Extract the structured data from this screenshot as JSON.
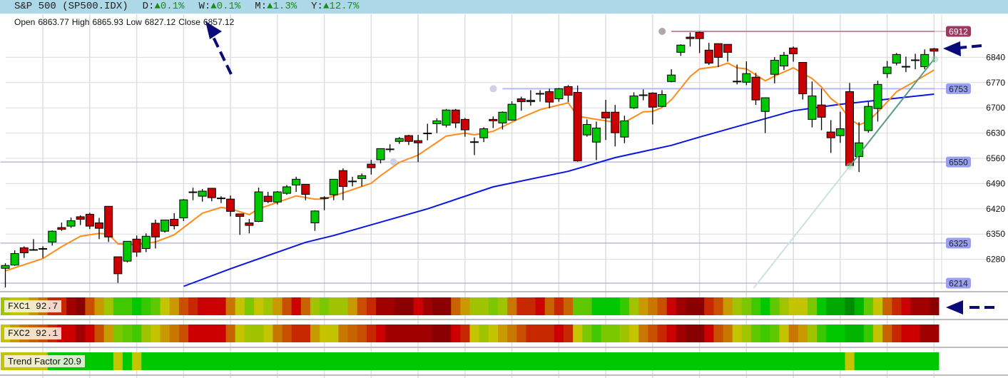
{
  "header": {
    "symbol": "S&P 500 (SP500.IDX)",
    "changes": [
      {
        "label": "D:",
        "arrow": "▲",
        "value": "0.1%"
      },
      {
        "label": "W:",
        "arrow": "▲",
        "value": "0.1%"
      },
      {
        "label": "M:",
        "arrow": "▲",
        "value": "1.3%"
      },
      {
        "label": "Y:",
        "arrow": "▲",
        "value": "12.7%"
      }
    ]
  },
  "ohlc_readout": {
    "open_label": "Open",
    "open": "6863.77",
    "high_label": "High",
    "high": "6865.93",
    "low_label": "Low",
    "low": "6827.12",
    "close_label": "Close",
    "close": "6857.12"
  },
  "colors": {
    "up": "#00c800",
    "down": "#cc0000",
    "fast_ma": "#ff8c1a",
    "slow_ma": "#0a14e6",
    "trendline": "#5a9a88",
    "resistance": "#9c3a5e",
    "level": "#9aa0f0",
    "annotation_arrow": "#0a0a78"
  },
  "chart_data": {
    "type": "candlestick",
    "ylim": [
      6214,
      6912
    ],
    "grid": true,
    "y_ticks": [
      "6280",
      "6350",
      "6420",
      "6490",
      "6560",
      "6630",
      "6700",
      "6770",
      "6840"
    ],
    "candles_ohlc": [
      [
        6255,
        6269,
        6202,
        6263
      ],
      [
        6264,
        6305,
        6262,
        6296
      ],
      [
        6312,
        6316,
        6284,
        6298
      ],
      [
        6306,
        6336,
        6304,
        6305
      ],
      [
        6309,
        6316,
        6284,
        6310
      ],
      [
        6328,
        6360,
        6318,
        6358
      ],
      [
        6368,
        6382,
        6359,
        6363
      ],
      [
        6372,
        6396,
        6367,
        6387
      ],
      [
        6398,
        6402,
        6375,
        6391
      ],
      [
        6405,
        6409,
        6364,
        6372
      ],
      [
        6381,
        6395,
        6336,
        6366
      ],
      [
        6427,
        6427,
        6328,
        6342
      ],
      [
        6287,
        6287,
        6215,
        6240
      ],
      [
        6275,
        6330,
        6271,
        6330
      ],
      [
        6336,
        6346,
        6287,
        6300
      ],
      [
        6310,
        6352,
        6300,
        6344
      ],
      [
        6380,
        6390,
        6310,
        6342
      ],
      [
        6358,
        6389,
        6354,
        6389
      ],
      [
        6391,
        6408,
        6363,
        6373
      ],
      [
        6395,
        6447,
        6386,
        6445
      ],
      [
        6466,
        6479,
        6444,
        6466
      ],
      [
        6455,
        6475,
        6440,
        6469
      ],
      [
        6477,
        6477,
        6441,
        6451
      ],
      [
        6449,
        6455,
        6436,
        6448
      ],
      [
        6447,
        6457,
        6399,
        6413
      ],
      [
        6406,
        6406,
        6348,
        6399
      ],
      [
        6381,
        6392,
        6352,
        6374
      ],
      [
        6385,
        6479,
        6383,
        6467
      ],
      [
        6455,
        6467,
        6436,
        6440
      ],
      [
        6439,
        6469,
        6432,
        6467
      ],
      [
        6463,
        6486,
        6459,
        6481
      ],
      [
        6486,
        6509,
        6467,
        6502
      ],
      [
        6488,
        6488,
        6444,
        6460
      ],
      [
        6381,
        6416,
        6359,
        6414
      ],
      [
        6450,
        6455,
        6416,
        6450
      ],
      [
        6459,
        6502,
        6444,
        6502
      ],
      [
        6526,
        6532,
        6444,
        6482
      ],
      [
        6496,
        6509,
        6482,
        6496
      ],
      [
        6504,
        6518,
        6482,
        6512
      ],
      [
        6544,
        6556,
        6515,
        6534
      ],
      [
        6556,
        6587,
        6546,
        6587
      ],
      [
        6585,
        6599,
        6577,
        6585
      ],
      [
        6607,
        6619,
        6600,
        6615
      ],
      [
        6623,
        6625,
        6597,
        6607
      ],
      [
        6609,
        6625,
        6550,
        6603
      ],
      [
        6629,
        6656,
        6610,
        6629
      ],
      [
        6656,
        6671,
        6630,
        6664
      ],
      [
        6652,
        6697,
        6646,
        6694
      ],
      [
        6694,
        6697,
        6644,
        6658
      ],
      [
        6668,
        6672,
        6620,
        6639
      ],
      [
        6605,
        6618,
        6569,
        6605
      ],
      [
        6617,
        6646,
        6605,
        6642
      ],
      [
        6668,
        6676,
        6644,
        6664
      ],
      [
        6658,
        6690,
        6640,
        6688
      ],
      [
        6666,
        6718,
        6664,
        6710
      ],
      [
        6725,
        6731,
        6692,
        6717
      ],
      [
        6721,
        6749,
        6706,
        6717
      ],
      [
        6739,
        6749,
        6717,
        6739
      ],
      [
        6745,
        6753,
        6699,
        6716
      ],
      [
        6725,
        6755,
        6717,
        6753
      ],
      [
        6759,
        6763,
        6716,
        6735
      ],
      [
        6743,
        6762,
        6551,
        6553
      ],
      [
        6625,
        6668,
        6620,
        6654
      ],
      [
        6605,
        6662,
        6555,
        6644
      ],
      [
        6688,
        6722,
        6611,
        6672
      ],
      [
        6688,
        6708,
        6593,
        6631
      ],
      [
        6619,
        6678,
        6602,
        6664
      ],
      [
        6700,
        6743,
        6697,
        6733
      ],
      [
        6735,
        6751,
        6721,
        6735
      ],
      [
        6741,
        6743,
        6654,
        6702
      ],
      [
        6704,
        6749,
        6702,
        6737
      ],
      [
        6773,
        6807,
        6771,
        6791
      ],
      [
        6854,
        6876,
        6844,
        6874
      ],
      [
        6896,
        6909,
        6870,
        6892
      ],
      [
        6909,
        6912,
        6852,
        6892
      ],
      [
        6860,
        6880,
        6819,
        6824
      ],
      [
        6878,
        6878,
        6813,
        6840
      ],
      [
        6876,
        6876,
        6828,
        6854
      ],
      [
        6773,
        6820,
        6765,
        6773
      ],
      [
        6771,
        6829,
        6763,
        6795
      ],
      [
        6785,
        6797,
        6708,
        6722
      ],
      [
        6690,
        6728,
        6630,
        6728
      ],
      [
        6793,
        6841,
        6768,
        6832
      ],
      [
        6816,
        6855,
        6805,
        6846
      ],
      [
        6866,
        6870,
        6828,
        6850
      ],
      [
        6826,
        6826,
        6723,
        6739
      ],
      [
        6668,
        6773,
        6646,
        6733
      ],
      [
        6708,
        6753,
        6638,
        6674
      ],
      [
        6633,
        6666,
        6575,
        6617
      ],
      [
        6623,
        6689,
        6603,
        6642
      ],
      [
        6745,
        6769,
        6538,
        6540
      ],
      [
        6565,
        6660,
        6522,
        6603
      ],
      [
        6637,
        6716,
        6631,
        6704
      ],
      [
        6698,
        6775,
        6662,
        6765
      ],
      [
        6795,
        6830,
        6783,
        6813
      ],
      [
        6824,
        6852,
        6818,
        6848
      ],
      [
        6814,
        6842,
        6799,
        6814
      ],
      [
        6832,
        6850,
        6807,
        6833
      ],
      [
        6814,
        6862,
        6807,
        6848
      ],
      [
        6863.77,
        6865.93,
        6827.12,
        6857.12
      ]
    ],
    "fast_ma_points": [
      [
        0,
        6248
      ],
      [
        4,
        6282
      ],
      [
        6,
        6315
      ],
      [
        8,
        6344
      ],
      [
        10,
        6352
      ],
      [
        11,
        6350
      ],
      [
        12,
        6323
      ],
      [
        14,
        6320
      ],
      [
        16,
        6328
      ],
      [
        18,
        6348
      ],
      [
        21,
        6408
      ],
      [
        23,
        6424
      ],
      [
        24,
        6420
      ],
      [
        26,
        6404
      ],
      [
        27,
        6420
      ],
      [
        31,
        6456
      ],
      [
        33,
        6447
      ],
      [
        34,
        6447
      ],
      [
        39,
        6491
      ],
      [
        40,
        6512
      ],
      [
        42,
        6549
      ],
      [
        44,
        6569
      ],
      [
        47,
        6622
      ],
      [
        49,
        6630
      ],
      [
        50,
        6625
      ],
      [
        52,
        6635
      ],
      [
        55,
        6673
      ],
      [
        57,
        6695
      ],
      [
        60,
        6714
      ],
      [
        61,
        6677
      ],
      [
        63,
        6668
      ],
      [
        65,
        6660
      ],
      [
        66,
        6660
      ],
      [
        68,
        6689
      ],
      [
        69,
        6690
      ],
      [
        70,
        6701
      ],
      [
        71,
        6722
      ],
      [
        73,
        6787
      ],
      [
        74,
        6808
      ],
      [
        76,
        6815
      ],
      [
        77,
        6824
      ],
      [
        78,
        6811
      ],
      [
        79,
        6808
      ],
      [
        81,
        6775
      ],
      [
        82,
        6788
      ],
      [
        84,
        6811
      ],
      [
        86,
        6781
      ],
      [
        87,
        6758
      ],
      [
        88,
        6726
      ],
      [
        89,
        6706
      ],
      [
        90,
        6669
      ],
      [
        91,
        6653
      ],
      [
        92,
        6663
      ],
      [
        93,
        6689
      ],
      [
        94,
        6716
      ],
      [
        95,
        6745
      ],
      [
        97,
        6774
      ],
      [
        99,
        6805
      ]
    ],
    "slow_ma_points": [
      [
        19,
        6205
      ],
      [
        24,
        6254
      ],
      [
        32,
        6327
      ],
      [
        35,
        6346
      ],
      [
        45,
        6420
      ],
      [
        52,
        6481
      ],
      [
        60,
        6524
      ],
      [
        65,
        6562
      ],
      [
        71,
        6596
      ],
      [
        74,
        6619
      ],
      [
        84,
        6692
      ],
      [
        89,
        6710
      ],
      [
        99,
        6738
      ]
    ],
    "horizontal_levels": [
      {
        "price": 6912,
        "label": "6912",
        "style": "resistance",
        "from_index": 71
      },
      {
        "price": 6753,
        "label": "6753",
        "style": "level-light",
        "from_index": 53
      },
      {
        "price": 6550,
        "label": "6550",
        "style": "level",
        "from_index": 0,
        "marker_index": 41
      },
      {
        "price": 6325,
        "label": "6325",
        "style": "level",
        "from_index": 0
      },
      {
        "price": 6214,
        "label": "6214",
        "style": "level",
        "from_index": 0
      }
    ],
    "trendline": {
      "from": [
        90,
        6538
      ],
      "to": [
        99,
        6835
      ],
      "extend_back_to_price": 6200
    }
  },
  "indicators": [
    {
      "label": "FXC1 92.7",
      "colors": [
        "#a0c400",
        "#c4c400",
        "#c4c400",
        "#c89a00",
        "#c87000",
        "#c82800",
        "#c82800",
        "#a00000",
        "#8a0000",
        "#c85000",
        "#c89a00",
        "#a0c400",
        "#40c800",
        "#40c800",
        "#00c800",
        "#38c800",
        "#60c800",
        "#c4c400",
        "#c89a00",
        "#c85000",
        "#c82800",
        "#cc0000",
        "#cc0000",
        "#cc0000",
        "#c87800",
        "#c4c400",
        "#7cc800",
        "#c4c400",
        "#a0c400",
        "#c89a00",
        "#c85000",
        "#cc0000",
        "#c86400",
        "#a0c400",
        "#7cc800",
        "#a0c400",
        "#a0c400",
        "#c89a00",
        "#c85000",
        "#c82800",
        "#a00000",
        "#a00000",
        "#8a0000",
        "#8a0000",
        "#cc0000",
        "#a00000",
        "#8a0000",
        "#8a0000",
        "#c86400",
        "#c89a00",
        "#a0c400",
        "#a0c400",
        "#7cc800",
        "#a0c400",
        "#c87800",
        "#c82800",
        "#c82800",
        "#cc0000",
        "#c86400",
        "#c82800",
        "#c86400",
        "#60c800",
        "#60c800",
        "#00c800",
        "#00c800",
        "#00c800",
        "#38c800",
        "#a0c400",
        "#c89a00",
        "#c87800",
        "#c85000",
        "#cc0000",
        "#a00000",
        "#8a0000",
        "#8a0000",
        "#c82800",
        "#c85000",
        "#c89a00",
        "#a0c400",
        "#7cc800",
        "#40c800",
        "#00c800",
        "#60c800",
        "#a0c400",
        "#c4c400",
        "#c4c400",
        "#7cc800",
        "#00c800",
        "#00a800",
        "#00a800",
        "#008c00",
        "#00b400",
        "#60c800",
        "#c4c400",
        "#c86400",
        "#c82800",
        "#cc0000",
        "#a00000",
        "#a00000",
        "#8a0000"
      ]
    },
    {
      "label": "FXC2 92.1",
      "colors": [
        "#c4c400",
        "#c89a00",
        "#c87800",
        "#c86400",
        "#c85000",
        "#c82800",
        "#cc0000",
        "#cc0000",
        "#a00000",
        "#cc0000",
        "#c85000",
        "#c89a00",
        "#7cc800",
        "#60c800",
        "#40c800",
        "#a0c400",
        "#c4c400",
        "#c89a00",
        "#c87800",
        "#c85000",
        "#cc0000",
        "#cc0000",
        "#cc0000",
        "#cc0000",
        "#c86400",
        "#c4c400",
        "#a0c400",
        "#a0c400",
        "#c4c400",
        "#c87800",
        "#c85000",
        "#c82800",
        "#c82800",
        "#c89a00",
        "#c4c400",
        "#c4c400",
        "#c87800",
        "#c86400",
        "#c85000",
        "#c82800",
        "#cc0000",
        "#a00000",
        "#a00000",
        "#a00000",
        "#a00000",
        "#a00000",
        "#8a0000",
        "#8a0000",
        "#cc0000",
        "#c82800",
        "#c4c400",
        "#a0c400",
        "#c4c400",
        "#c89a00",
        "#c87800",
        "#c85000",
        "#c82800",
        "#c82800",
        "#c82800",
        "#cc0000",
        "#c82800",
        "#c4c400",
        "#7cc800",
        "#40c800",
        "#7cc800",
        "#7cc800",
        "#a0c400",
        "#c4c400",
        "#c87800",
        "#c85000",
        "#c82800",
        "#cc0000",
        "#a00000",
        "#8a0000",
        "#8a0000",
        "#cc0000",
        "#c85000",
        "#c87800",
        "#c4c400",
        "#a0c400",
        "#60c800",
        "#40c800",
        "#60c800",
        "#c4c400",
        "#c87800",
        "#c89a00",
        "#a0c400",
        "#38c800",
        "#00c800",
        "#00c800",
        "#00b400",
        "#00b400",
        "#38c800",
        "#c4c400",
        "#c86400",
        "#c82800",
        "#cc0000",
        "#cc0000",
        "#a00000",
        "#a00000"
      ]
    },
    {
      "label": "Trend Factor 20.9",
      "yellow_cells": [
        0,
        1,
        2,
        3,
        4,
        12,
        14,
        90
      ],
      "yellow": "#c4c400",
      "green": "#00c800"
    }
  ]
}
